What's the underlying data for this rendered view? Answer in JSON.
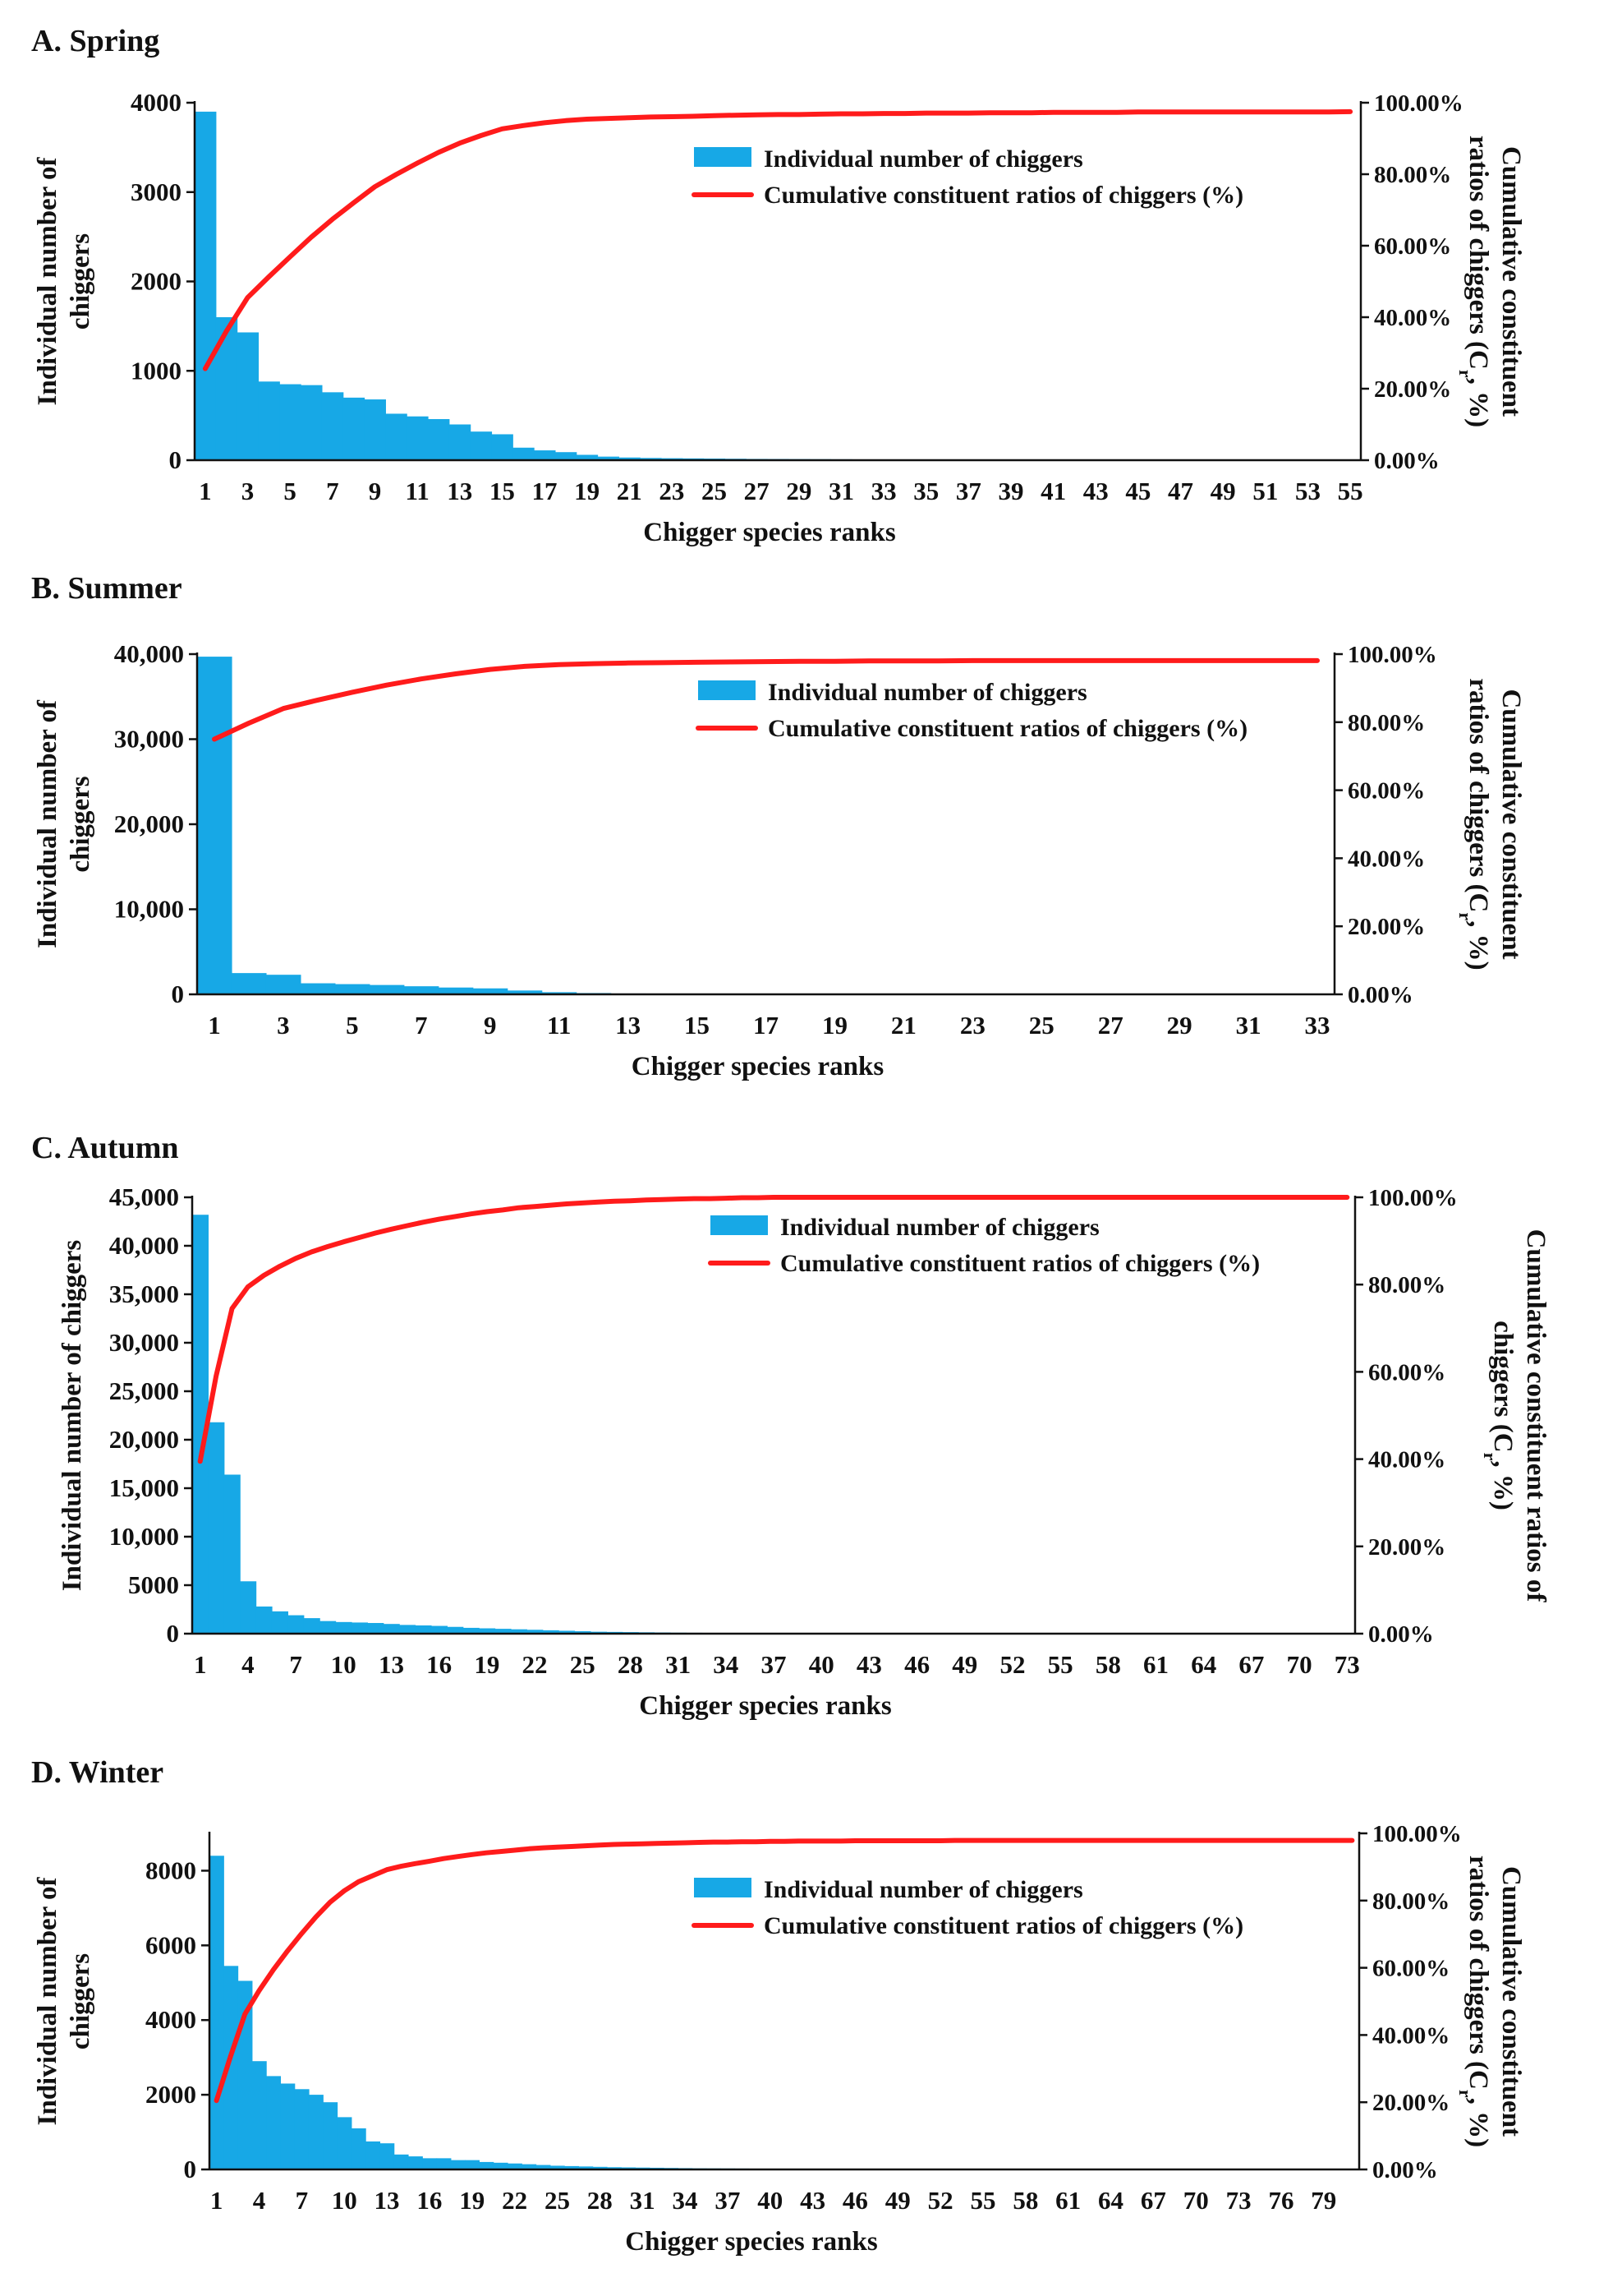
{
  "colors": {
    "bar": "#17a8e6",
    "line": "#ff1b1b",
    "axis": "#111111"
  },
  "chart_data": [
    {
      "panel": "A. Spring",
      "type": "bar+line",
      "n_species": 55,
      "tick_step": 2,
      "ylim": [
        0,
        4000
      ],
      "yticks": [
        "0",
        "1000",
        "2000",
        "3000",
        "4000"
      ],
      "yticks_values": [
        0,
        1000,
        2000,
        3000,
        4000
      ],
      "y2ticks": [
        "0.00%",
        "20.00%",
        "40.00%",
        "60.00%",
        "80.00%",
        "100.00%"
      ],
      "xlabel": "Chigger species ranks",
      "ylabel_lines": [
        "Individual number of",
        "chiggers"
      ],
      "y2label_lines": [
        "Cumulative constituent",
        "ratios of chiggers (C",
        "r",
        ", %)"
      ],
      "legend": {
        "bar": "Individual number of chiggers",
        "line": "Cumulative constituent ratios of chiggers (%)"
      },
      "values": [
        3900,
        1600,
        1430,
        880,
        850,
        840,
        760,
        700,
        680,
        520,
        490,
        460,
        400,
        320,
        290,
        140,
        110,
        90,
        60,
        40,
        30,
        25,
        22,
        20,
        18,
        16,
        14,
        13,
        12,
        11,
        10,
        9,
        8,
        8,
        7,
        7,
        6,
        6,
        5,
        5,
        5,
        4,
        4,
        4,
        3,
        3,
        3,
        3,
        2,
        2,
        2,
        2,
        1,
        1,
        1
      ],
      "cumulative_pct": [
        25.6,
        36.1,
        45.5,
        51.3,
        56.9,
        62.4,
        67.4,
        72.0,
        76.5,
        79.9,
        83.1,
        86.1,
        88.7,
        90.8,
        92.7,
        93.6,
        94.4,
        95.0,
        95.4,
        95.6,
        95.8,
        96.0,
        96.1,
        96.2,
        96.4,
        96.5,
        96.6,
        96.7,
        96.7,
        96.8,
        96.9,
        96.9,
        97.0,
        97.0,
        97.1,
        97.1,
        97.1,
        97.2,
        97.2,
        97.2,
        97.3,
        97.3,
        97.3,
        97.3,
        97.4,
        97.4,
        97.4,
        97.4,
        97.4,
        97.4,
        97.4,
        97.4,
        97.4,
        97.4,
        97.5
      ]
    },
    {
      "panel": "B. Summer",
      "type": "bar+line",
      "n_species": 33,
      "tick_step": 2,
      "ylim": [
        0,
        40000
      ],
      "yticks": [
        "0",
        "10,000",
        "20,000",
        "30,000",
        "40,000"
      ],
      "yticks_values": [
        0,
        10000,
        20000,
        30000,
        40000
      ],
      "y2ticks": [
        "0.00%",
        "20.00%",
        "40.00%",
        "60.00%",
        "80.00%",
        "100.00%"
      ],
      "xlabel": "Chigger species ranks",
      "ylabel_lines": [
        "Individual number of",
        "chiggers"
      ],
      "y2label_lines": [
        "Cumulative constituent",
        "ratios of chiggers (C",
        "r",
        ", %)"
      ],
      "legend": {
        "bar": "Individual number of chiggers",
        "line": "Cumulative constituent ratios of chiggers (%)"
      },
      "values": [
        39700,
        2500,
        2300,
        1300,
        1200,
        1100,
        950,
        800,
        700,
        450,
        250,
        150,
        100,
        80,
        60,
        50,
        40,
        35,
        30,
        25,
        20,
        18,
        15,
        12,
        10,
        9,
        8,
        7,
        6,
        5,
        4,
        3,
        2
      ],
      "cumulative_pct": [
        75.0,
        79.7,
        84.0,
        86.5,
        88.8,
        90.9,
        92.7,
        94.2,
        95.5,
        96.4,
        96.9,
        97.2,
        97.4,
        97.5,
        97.6,
        97.7,
        97.8,
        97.9,
        97.9,
        98.0,
        98.0,
        98.0,
        98.1,
        98.1,
        98.1,
        98.1,
        98.1,
        98.1,
        98.1,
        98.1,
        98.1,
        98.1,
        98.1
      ]
    },
    {
      "panel": "C. Autumn",
      "type": "bar+line",
      "n_species": 73,
      "tick_step": 3,
      "ylim": [
        0,
        45000
      ],
      "yticks": [
        "0",
        "5000",
        "10,000",
        "15,000",
        "20,000",
        "25,000",
        "30,000",
        "35,000",
        "40,000",
        "45,000"
      ],
      "yticks_values": [
        0,
        5000,
        10000,
        15000,
        20000,
        25000,
        30000,
        35000,
        40000,
        45000
      ],
      "y2ticks": [
        "0.00%",
        "20.00%",
        "40.00%",
        "60.00%",
        "80.00%",
        "100.00%"
      ],
      "xlabel": "Chigger species ranks",
      "ylabel_lines": [
        "Individual number of chiggers"
      ],
      "y2label_lines": [
        "Cumulative constituent ratios of",
        "chiggers (C",
        "r",
        ", %)"
      ],
      "legend": {
        "bar": "Individual number of chiggers",
        "line": "Cumulative constituent ratios of chiggers (%)"
      },
      "values": [
        43200,
        21800,
        16400,
        5400,
        2800,
        2300,
        1900,
        1600,
        1300,
        1200,
        1150,
        1100,
        1000,
        900,
        850,
        800,
        700,
        600,
        550,
        500,
        450,
        400,
        350,
        300,
        250,
        200,
        180,
        160,
        140,
        120,
        100,
        90,
        80,
        70,
        60,
        55,
        50,
        45,
        40,
        35,
        30,
        28,
        26,
        24,
        22,
        20,
        18,
        16,
        14,
        12,
        11,
        10,
        9,
        8,
        7,
        6,
        6,
        5,
        5,
        4,
        4,
        3,
        3,
        3,
        2,
        2,
        2,
        2,
        1,
        1,
        1,
        1,
        1
      ],
      "cumulative_pct": [
        39.5,
        59.0,
        74.5,
        79.5,
        82.1,
        84.2,
        86.0,
        87.5,
        88.7,
        89.8,
        90.8,
        91.8,
        92.7,
        93.5,
        94.3,
        95.0,
        95.6,
        96.2,
        96.7,
        97.1,
        97.6,
        97.9,
        98.2,
        98.5,
        98.7,
        98.9,
        99.1,
        99.2,
        99.4,
        99.5,
        99.6,
        99.7,
        99.7,
        99.8,
        99.9,
        99.9,
        100.0,
        100.0,
        100.0,
        100.0,
        100.0,
        100.0,
        100.0,
        100.0,
        100.0,
        100.0,
        100.0,
        100.0,
        100.0,
        100.0,
        100.0,
        100.0,
        100.0,
        100.0,
        100.0,
        100.0,
        100.0,
        100.0,
        100.0,
        100.0,
        100.0,
        100.0,
        100.0,
        100.0,
        100.0,
        100.0,
        100.0,
        100.0,
        100.0,
        100.0,
        100.0,
        100.0,
        100.0
      ]
    },
    {
      "panel": "D. Winter",
      "type": "bar+line",
      "n_species": 81,
      "tick_step": 3,
      "ylim": [
        0,
        9000
      ],
      "yticks": [
        "0",
        "2000",
        "4000",
        "6000",
        "8000"
      ],
      "yticks_values": [
        0,
        2000,
        4000,
        6000,
        8000
      ],
      "y2ticks": [
        "0.00%",
        "20.00%",
        "40.00%",
        "60.00%",
        "80.00%",
        "100.00%"
      ],
      "xlabel": "Chigger species ranks",
      "ylabel_lines": [
        "Individual number of",
        "chiggers"
      ],
      "y2label_lines": [
        "Cumulative constituent",
        "ratios of chiggers (C",
        "r",
        ", %)"
      ],
      "legend": {
        "bar": "Individual number of chiggers",
        "line": "Cumulative constituent ratios of chiggers (%)"
      },
      "values": [
        8400,
        5450,
        5050,
        2900,
        2500,
        2300,
        2150,
        2000,
        1800,
        1400,
        1100,
        750,
        700,
        400,
        350,
        300,
        300,
        250,
        250,
        200,
        180,
        160,
        140,
        120,
        100,
        90,
        80,
        70,
        60,
        55,
        50,
        45,
        40,
        35,
        30,
        28,
        26,
        24,
        22,
        20,
        18,
        16,
        14,
        12,
        10,
        10,
        9,
        8,
        7,
        6,
        6,
        5,
        5,
        4,
        4,
        3,
        3,
        3,
        2,
        2,
        2,
        2,
        2,
        1,
        1,
        1,
        1,
        1,
        1,
        1,
        1,
        1,
        1,
        1,
        1,
        1,
        1,
        1,
        1,
        1,
        1
      ],
      "cumulative_pct": [
        20.5,
        33.8,
        46.2,
        53.2,
        59.4,
        65.0,
        70.2,
        75.1,
        79.5,
        82.9,
        85.6,
        87.4,
        89.2,
        90.2,
        91.0,
        91.7,
        92.5,
        93.1,
        93.7,
        94.2,
        94.6,
        95.0,
        95.4,
        95.7,
        95.9,
        96.1,
        96.3,
        96.5,
        96.7,
        96.8,
        96.9,
        97.0,
        97.1,
        97.2,
        97.3,
        97.4,
        97.4,
        97.5,
        97.5,
        97.6,
        97.6,
        97.7,
        97.7,
        97.7,
        97.7,
        97.8,
        97.8,
        97.8,
        97.8,
        97.8,
        97.8,
        97.8,
        97.9,
        97.9,
        97.9,
        97.9,
        97.9,
        97.9,
        97.9,
        97.9,
        97.9,
        97.9,
        97.9,
        97.9,
        97.9,
        97.9,
        97.9,
        97.9,
        97.9,
        97.9,
        97.9,
        97.9,
        97.9,
        97.9,
        97.9,
        97.9,
        97.9,
        97.9,
        97.9,
        97.9,
        97.9
      ]
    }
  ]
}
